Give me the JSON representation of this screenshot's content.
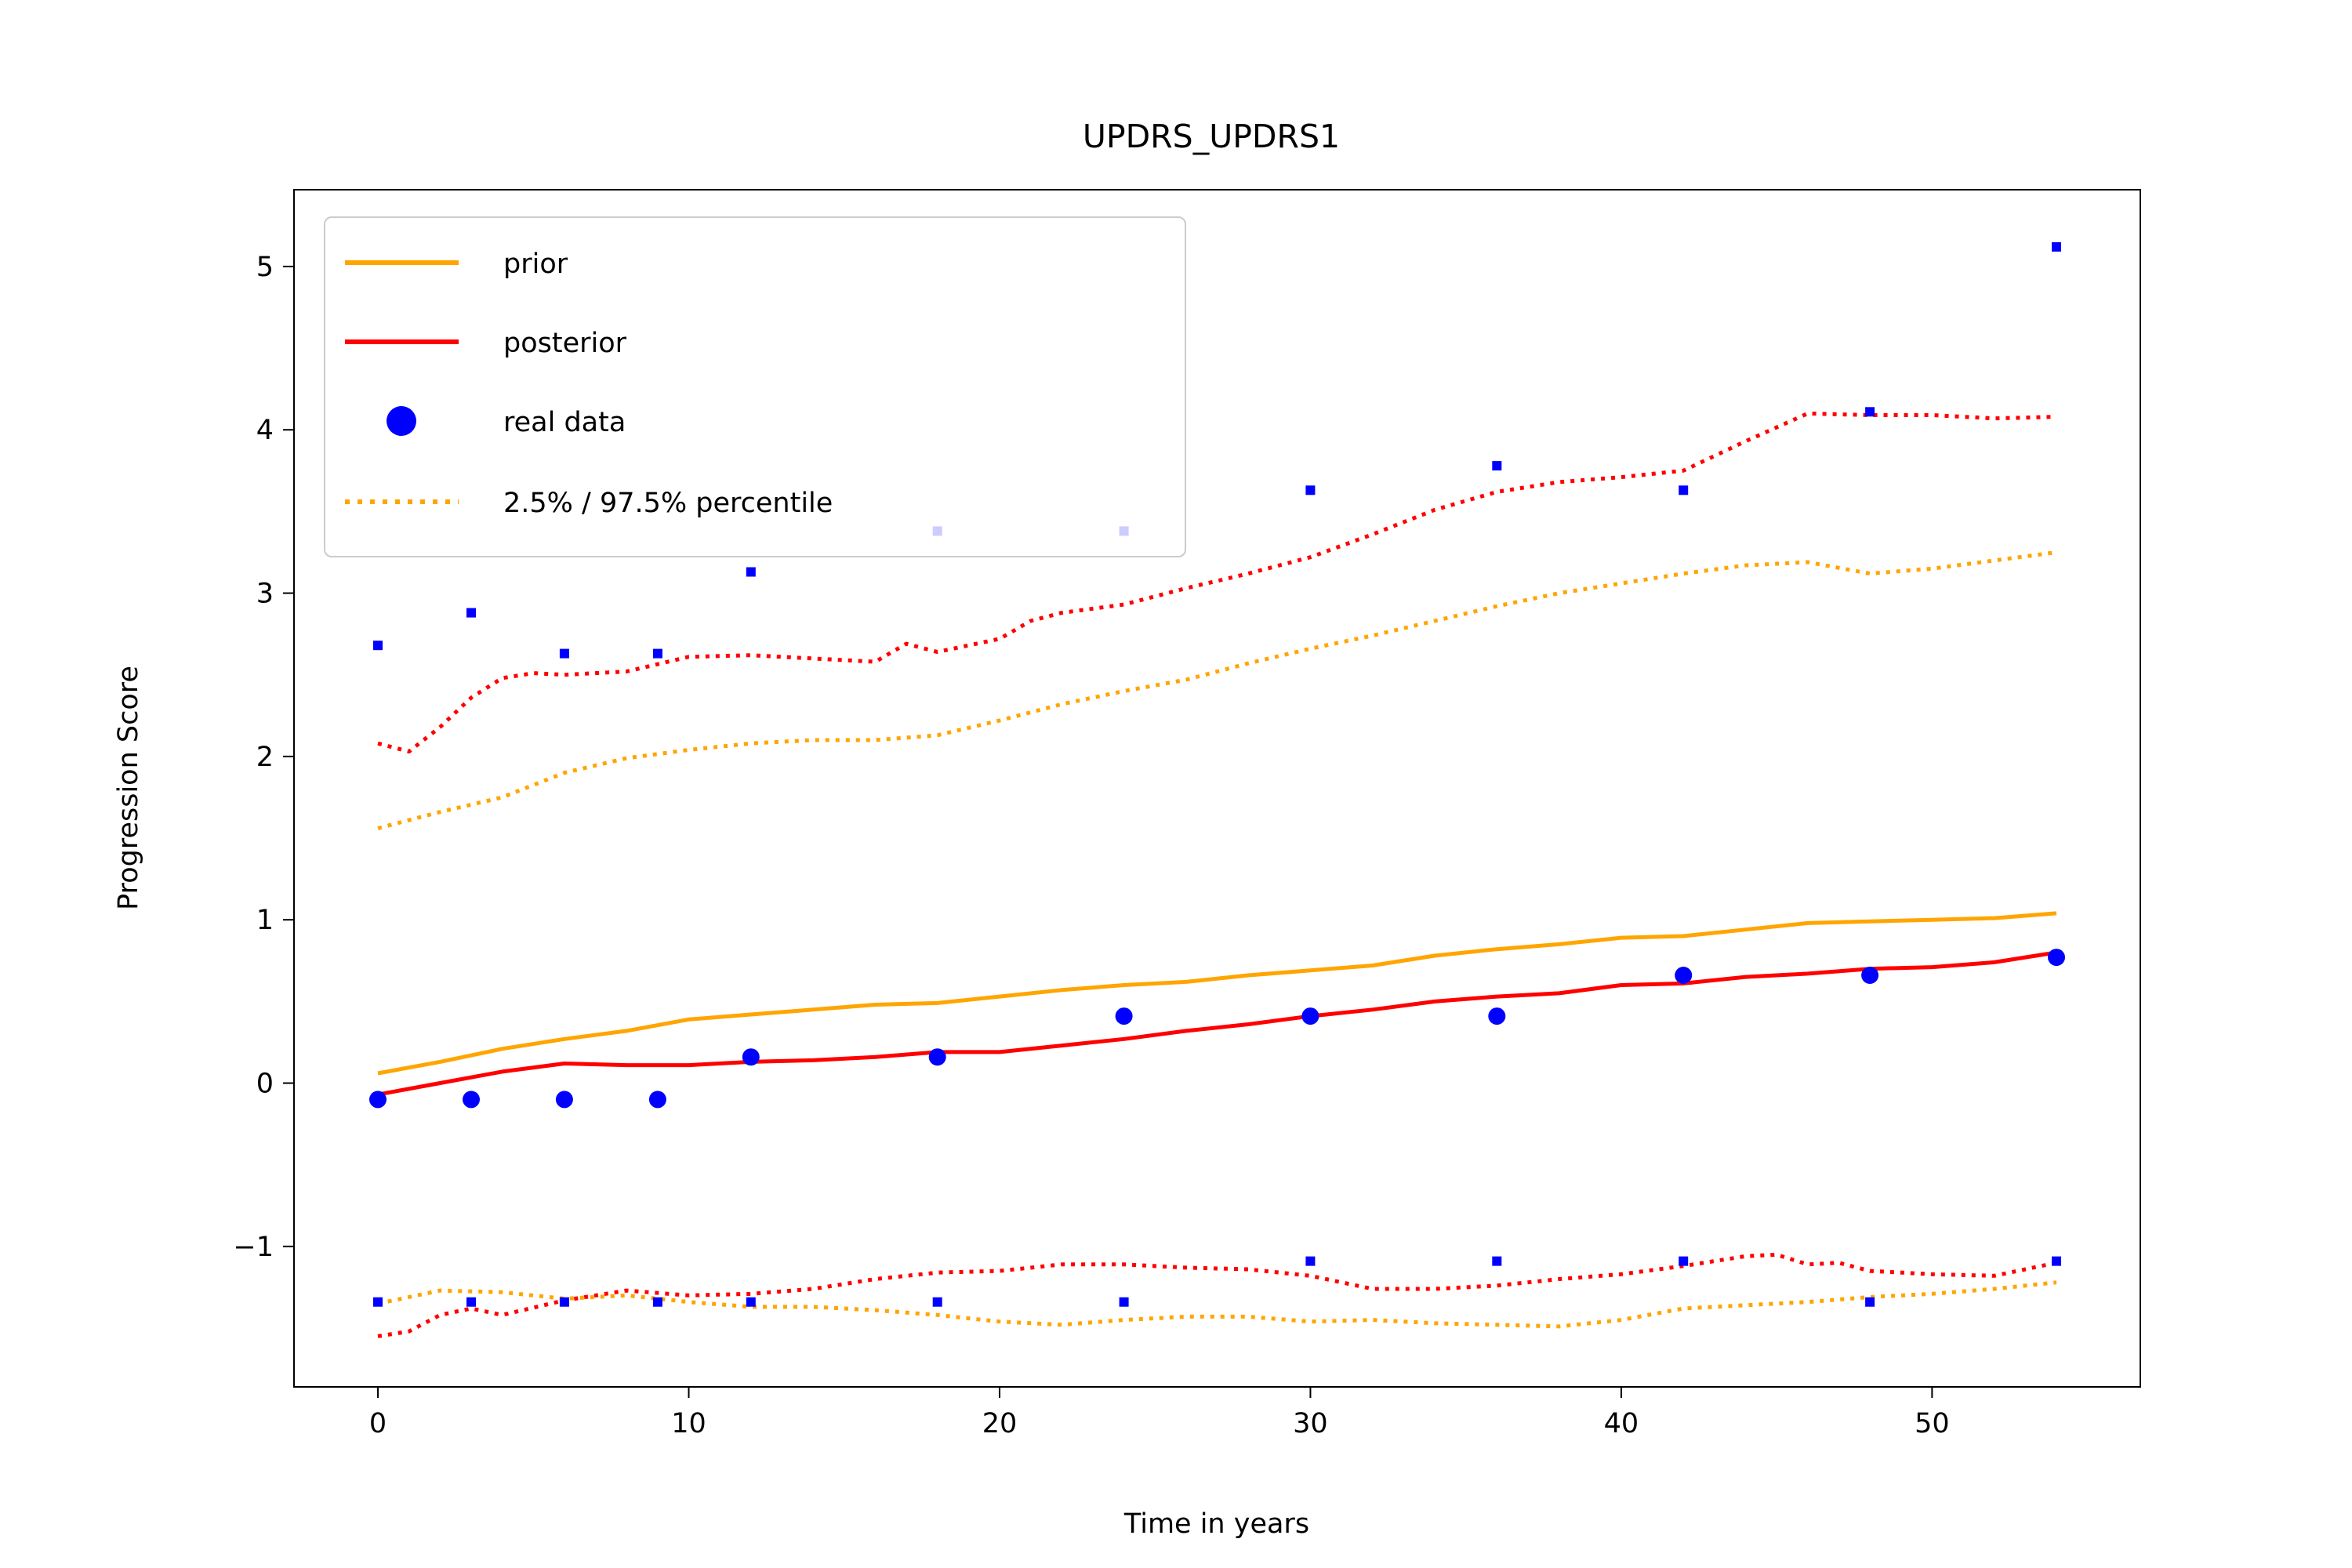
{
  "chart_data": {
    "type": "line",
    "title": "UPDRS_UPDRS1",
    "xlabel": "Time in years",
    "ylabel": "Progression Score",
    "xlim": [
      -2.7,
      56.7
    ],
    "ylim": [
      -1.86,
      5.47
    ],
    "xticks": [
      0,
      10,
      20,
      30,
      40,
      50
    ],
    "yticks": [
      -1,
      0,
      1,
      2,
      3,
      4,
      5
    ],
    "ytick_labels": [
      "−1",
      "0",
      "1",
      "2",
      "3",
      "4",
      "5"
    ],
    "grid": false,
    "legend_position": "top-left",
    "colors": {
      "prior": "#ffa500",
      "posterior": "#ff0000",
      "real": "#0000ff"
    },
    "legend": [
      {
        "label": "prior",
        "marker": "solid-line",
        "color": "#ffa500"
      },
      {
        "label": "posterior",
        "marker": "solid-line",
        "color": "#ff0000"
      },
      {
        "label": "real data",
        "marker": "dot",
        "color": "#0000ff"
      },
      {
        "label": "2.5% / 97.5% percentile",
        "marker": "dotted-line",
        "color": "#ffa500"
      }
    ],
    "series": [
      {
        "name": "prior",
        "style": "solid",
        "color": "#ffa500",
        "x": [
          0,
          2,
          4,
          6,
          8,
          10,
          12,
          14,
          16,
          18,
          20,
          22,
          24,
          26,
          28,
          30,
          32,
          34,
          36,
          38,
          40,
          42,
          44,
          46,
          48,
          50,
          52,
          54
        ],
        "y": [
          0.06,
          0.13,
          0.21,
          0.27,
          0.32,
          0.39,
          0.42,
          0.45,
          0.48,
          0.49,
          0.53,
          0.57,
          0.6,
          0.62,
          0.66,
          0.69,
          0.72,
          0.78,
          0.82,
          0.85,
          0.89,
          0.9,
          0.94,
          0.98,
          0.99,
          1.0,
          1.01,
          1.04
        ]
      },
      {
        "name": "posterior",
        "style": "solid",
        "color": "#ff0000",
        "x": [
          0,
          2,
          4,
          6,
          8,
          10,
          12,
          14,
          16,
          18,
          20,
          22,
          24,
          26,
          28,
          30,
          32,
          34,
          36,
          38,
          40,
          42,
          44,
          46,
          48,
          50,
          52,
          54
        ],
        "y": [
          -0.07,
          0.0,
          0.07,
          0.12,
          0.11,
          0.11,
          0.13,
          0.14,
          0.16,
          0.19,
          0.19,
          0.23,
          0.27,
          0.32,
          0.36,
          0.41,
          0.45,
          0.5,
          0.53,
          0.55,
          0.6,
          0.61,
          0.65,
          0.67,
          0.7,
          0.71,
          0.74,
          0.8
        ]
      },
      {
        "name": "prior 97.5%",
        "style": "dotted",
        "color": "#ffa500",
        "x": [
          0,
          2,
          4,
          6,
          8,
          10,
          12,
          14,
          16,
          18,
          20,
          22,
          24,
          26,
          28,
          30,
          32,
          34,
          36,
          38,
          40,
          42,
          44,
          46,
          48,
          50,
          52,
          54
        ],
        "y": [
          1.56,
          1.66,
          1.75,
          1.9,
          1.99,
          2.04,
          2.08,
          2.1,
          2.1,
          2.13,
          2.22,
          2.32,
          2.4,
          2.47,
          2.57,
          2.66,
          2.74,
          2.83,
          2.92,
          3.0,
          3.06,
          3.12,
          3.17,
          3.19,
          3.12,
          3.15,
          3.2,
          3.25
        ]
      },
      {
        "name": "prior 2.5%",
        "style": "dotted",
        "color": "#ffa500",
        "x": [
          0,
          2,
          4,
          6,
          8,
          10,
          12,
          14,
          16,
          18,
          20,
          22,
          24,
          26,
          28,
          30,
          32,
          34,
          36,
          38,
          40,
          42,
          44,
          46,
          48,
          50,
          52,
          54
        ],
        "y": [
          -1.35,
          -1.27,
          -1.28,
          -1.32,
          -1.3,
          -1.34,
          -1.37,
          -1.37,
          -1.39,
          -1.42,
          -1.46,
          -1.48,
          -1.45,
          -1.43,
          -1.43,
          -1.46,
          -1.45,
          -1.47,
          -1.48,
          -1.49,
          -1.45,
          -1.38,
          -1.36,
          -1.34,
          -1.31,
          -1.29,
          -1.26,
          -1.22
        ]
      },
      {
        "name": "posterior 97.5%",
        "style": "dotted",
        "color": "#ff0000",
        "x": [
          0,
          1,
          2,
          3,
          4,
          5,
          6,
          8,
          10,
          12,
          14,
          16,
          17,
          18,
          19,
          20,
          21,
          22,
          24,
          26,
          28,
          30,
          32,
          34,
          36,
          38,
          40,
          42,
          44,
          46,
          48,
          50,
          52,
          54
        ],
        "y": [
          2.08,
          2.03,
          2.18,
          2.36,
          2.48,
          2.51,
          2.5,
          2.52,
          2.61,
          2.62,
          2.6,
          2.58,
          2.69,
          2.64,
          2.68,
          2.72,
          2.83,
          2.88,
          2.93,
          3.03,
          3.12,
          3.22,
          3.36,
          3.51,
          3.62,
          3.68,
          3.71,
          3.75,
          3.93,
          4.1,
          4.09,
          4.09,
          4.07,
          4.08
        ]
      },
      {
        "name": "posterior 2.5%",
        "style": "dotted",
        "color": "#ff0000",
        "x": [
          0,
          1,
          2,
          3,
          4,
          6,
          8,
          10,
          12,
          14,
          16,
          18,
          20,
          22,
          24,
          26,
          28,
          30,
          32,
          34,
          36,
          38,
          40,
          42,
          44,
          45,
          46,
          47,
          48,
          50,
          52,
          54
        ],
        "y": [
          -1.55,
          -1.52,
          -1.42,
          -1.38,
          -1.42,
          -1.33,
          -1.27,
          -1.3,
          -1.29,
          -1.26,
          -1.2,
          -1.16,
          -1.15,
          -1.11,
          -1.11,
          -1.13,
          -1.14,
          -1.18,
          -1.26,
          -1.26,
          -1.24,
          -1.2,
          -1.17,
          -1.12,
          -1.06,
          -1.05,
          -1.11,
          -1.1,
          -1.15,
          -1.17,
          -1.18,
          -1.1
        ]
      }
    ],
    "real_data": {
      "name": "real data",
      "color": "#0000ff",
      "x": [
        0,
        3,
        6,
        9,
        12,
        18,
        24,
        30,
        36,
        42,
        48,
        54
      ],
      "y": [
        -0.1,
        -0.1,
        -0.1,
        -0.1,
        0.16,
        0.16,
        0.41,
        0.41,
        0.41,
        0.66,
        0.66,
        0.77
      ]
    },
    "sample_points": {
      "color": "#0000ff",
      "x": [
        0,
        3,
        6,
        9,
        12,
        18,
        24,
        30,
        36,
        42,
        48,
        54,
        0,
        3,
        6,
        9,
        12,
        18,
        24,
        30,
        36,
        42,
        48,
        54
      ],
      "y": [
        2.68,
        2.88,
        2.63,
        2.63,
        3.13,
        3.38,
        3.38,
        3.63,
        3.78,
        3.63,
        4.11,
        5.12,
        -1.34,
        -1.34,
        -1.34,
        -1.34,
        -1.34,
        -1.34,
        -1.34,
        -1.09,
        -1.09,
        -1.09,
        -1.34,
        -1.09
      ]
    }
  }
}
